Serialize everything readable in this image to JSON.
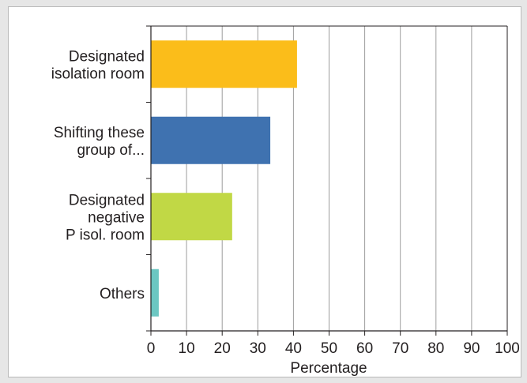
{
  "chart_data": {
    "type": "bar",
    "orientation": "horizontal",
    "categories": [
      [
        "Designated",
        "isolation room"
      ],
      [
        "Shifting these",
        "group of..."
      ],
      [
        "Designated",
        "negative",
        "P isol. room"
      ],
      [
        "Others"
      ]
    ],
    "values": [
      41,
      33.5,
      22.8,
      2.2
    ],
    "colors": [
      "#fbbd1a",
      "#3f72b0",
      "#c1d845",
      "#6cc7c2"
    ],
    "xlabel": "Percentage",
    "xlim": [
      0,
      100
    ],
    "xticks": [
      "0",
      "10",
      "20",
      "30",
      "40",
      "50",
      "60",
      "70",
      "80",
      "90",
      "100"
    ],
    "grid": "vertical",
    "legend": "none"
  }
}
